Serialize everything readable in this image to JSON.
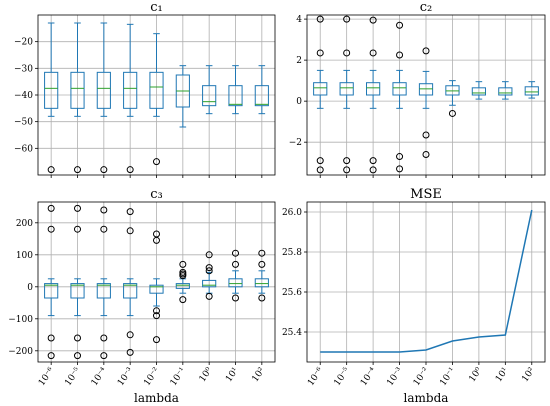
{
  "chart_data": [
    {
      "type": "box",
      "title": "c₁",
      "xlabel": "",
      "ylabel": "",
      "categories": [
        "10⁻⁶",
        "10⁻⁵",
        "10⁻⁴",
        "10⁻³",
        "10⁻²",
        "10⁻¹",
        "10⁰",
        "10¹",
        "10²"
      ],
      "ylim": [
        -70,
        -10
      ],
      "yticks": [
        -60,
        -50,
        -40,
        -30,
        -20
      ],
      "ytick_labels": [
        "−60",
        "−50",
        "−40",
        "−30",
        "−20"
      ],
      "grid": true,
      "boxes": [
        {
          "q1": -45,
          "median": -37.5,
          "q3": -31.5,
          "whislo": -48,
          "whishi": -13,
          "fliers": [
            -68
          ]
        },
        {
          "q1": -45,
          "median": -37.5,
          "q3": -31.5,
          "whislo": -48,
          "whishi": -13,
          "fliers": [
            -68
          ]
        },
        {
          "q1": -45,
          "median": -37.5,
          "q3": -31.5,
          "whislo": -48,
          "whishi": -13,
          "fliers": [
            -68
          ]
        },
        {
          "q1": -45,
          "median": -37.5,
          "q3": -31.5,
          "whislo": -48,
          "whishi": -13.5,
          "fliers": [
            -68
          ]
        },
        {
          "q1": -45,
          "median": -37,
          "q3": -31.5,
          "whislo": -48,
          "whishi": -17,
          "fliers": [
            -65
          ]
        },
        {
          "q1": -44.5,
          "median": -38.5,
          "q3": -32.5,
          "whislo": -52,
          "whishi": -29,
          "fliers": []
        },
        {
          "q1": -44,
          "median": -42.5,
          "q3": -36.5,
          "whislo": -47,
          "whishi": -29,
          "fliers": []
        },
        {
          "q1": -44,
          "median": -43.5,
          "q3": -36.5,
          "whislo": -47,
          "whishi": -29,
          "fliers": []
        },
        {
          "q1": -44,
          "median": -43.5,
          "q3": -36.5,
          "whislo": -47,
          "whishi": -29,
          "fliers": []
        }
      ]
    },
    {
      "type": "box",
      "title": "c₂",
      "xlabel": "",
      "ylabel": "",
      "categories": [
        "10⁻⁶",
        "10⁻⁵",
        "10⁻⁴",
        "10⁻³",
        "10⁻²",
        "10⁻¹",
        "10⁰",
        "10¹",
        "10²"
      ],
      "ylim": [
        -3.6,
        4.2
      ],
      "yticks": [
        -2,
        0,
        2,
        4
      ],
      "ytick_labels": [
        "−2",
        "0",
        "2",
        "4"
      ],
      "grid": true,
      "boxes": [
        {
          "q1": 0.3,
          "median": 0.65,
          "q3": 0.9,
          "whislo": -0.35,
          "whishi": 1.5,
          "fliers": [
            4.0,
            2.35,
            -2.9,
            -3.35
          ]
        },
        {
          "q1": 0.3,
          "median": 0.65,
          "q3": 0.9,
          "whislo": -0.35,
          "whishi": 1.5,
          "fliers": [
            4.0,
            2.35,
            -2.9,
            -3.35
          ]
        },
        {
          "q1": 0.3,
          "median": 0.65,
          "q3": 0.9,
          "whislo": -0.35,
          "whishi": 1.5,
          "fliers": [
            3.95,
            2.35,
            -2.9,
            -3.35
          ]
        },
        {
          "q1": 0.3,
          "median": 0.65,
          "q3": 0.9,
          "whislo": -0.35,
          "whishi": 1.5,
          "fliers": [
            3.7,
            2.25,
            -2.7,
            -3.3
          ]
        },
        {
          "q1": 0.3,
          "median": 0.6,
          "q3": 0.85,
          "whislo": -0.35,
          "whishi": 1.45,
          "fliers": [
            2.45,
            -1.65,
            -2.6
          ]
        },
        {
          "q1": 0.3,
          "median": 0.5,
          "q3": 0.75,
          "whislo": -0.2,
          "whishi": 1.0,
          "fliers": [
            -0.6
          ]
        },
        {
          "q1": 0.3,
          "median": 0.4,
          "q3": 0.65,
          "whislo": 0.1,
          "whishi": 0.95,
          "fliers": []
        },
        {
          "q1": 0.3,
          "median": 0.4,
          "q3": 0.65,
          "whislo": 0.1,
          "whishi": 0.95,
          "fliers": []
        },
        {
          "q1": 0.3,
          "median": 0.45,
          "q3": 0.7,
          "whislo": 0.15,
          "whishi": 0.95,
          "fliers": []
        }
      ]
    },
    {
      "type": "box",
      "title": "c₃",
      "xlabel": "lambda",
      "ylabel": "",
      "categories": [
        "10⁻⁶",
        "10⁻⁵",
        "10⁻⁴",
        "10⁻³",
        "10⁻²",
        "10⁻¹",
        "10⁰",
        "10¹",
        "10²"
      ],
      "ylim": [
        -235,
        265
      ],
      "yticks": [
        -200,
        -100,
        0,
        100,
        200
      ],
      "ytick_labels": [
        "−200",
        "−100",
        "0",
        "100",
        "200"
      ],
      "grid": true,
      "boxes": [
        {
          "q1": -35,
          "median": 5,
          "q3": 10,
          "whislo": -90,
          "whishi": 25,
          "fliers": [
            245,
            180,
            -160,
            -215
          ]
        },
        {
          "q1": -35,
          "median": 5,
          "q3": 10,
          "whislo": -90,
          "whishi": 25,
          "fliers": [
            245,
            180,
            -160,
            -215
          ]
        },
        {
          "q1": -35,
          "median": 5,
          "q3": 10,
          "whislo": -90,
          "whishi": 25,
          "fliers": [
            240,
            180,
            -160,
            -215
          ]
        },
        {
          "q1": -35,
          "median": 5,
          "q3": 10,
          "whislo": -90,
          "whishi": 25,
          "fliers": [
            235,
            175,
            -150,
            -205
          ]
        },
        {
          "q1": -20,
          "median": 0,
          "q3": 5,
          "whislo": -60,
          "whishi": 25,
          "fliers": [
            165,
            145,
            -75,
            -90,
            -165
          ]
        },
        {
          "q1": -5,
          "median": 5,
          "q3": 10,
          "whislo": -20,
          "whishi": 25,
          "fliers": [
            70,
            45,
            40,
            35,
            -40
          ]
        },
        {
          "q1": 0,
          "median": 5,
          "q3": 20,
          "whislo": -20,
          "whishi": 45,
          "fliers": [
            100,
            60,
            50,
            -30
          ]
        },
        {
          "q1": 0,
          "median": 10,
          "q3": 25,
          "whislo": -20,
          "whishi": 50,
          "fliers": [
            105,
            70,
            -35
          ]
        },
        {
          "q1": 0,
          "median": 10,
          "q3": 25,
          "whislo": -20,
          "whishi": 50,
          "fliers": [
            105,
            70,
            -35
          ]
        }
      ]
    },
    {
      "type": "line",
      "title": "MSE",
      "xlabel": "lambda",
      "ylabel": "",
      "categories": [
        "10⁻⁶",
        "10⁻⁵",
        "10⁻⁴",
        "10⁻³",
        "10⁻²",
        "10⁻¹",
        "10⁰",
        "10¹",
        "10²"
      ],
      "values": [
        25.3,
        25.3,
        25.3,
        25.3,
        25.31,
        25.355,
        25.375,
        25.385,
        26.01
      ],
      "ylim": [
        25.25,
        26.05
      ],
      "yticks": [
        25.4,
        25.6,
        25.8,
        26.0
      ],
      "ytick_labels": [
        "25.4",
        "25.6",
        "25.8",
        "26.0"
      ],
      "grid": true
    }
  ],
  "colors": {
    "box": "#1f77b4",
    "median": "#2ca02c",
    "line": "#1f77b4",
    "grid": "#b0b0b0",
    "axis": "#000000"
  }
}
